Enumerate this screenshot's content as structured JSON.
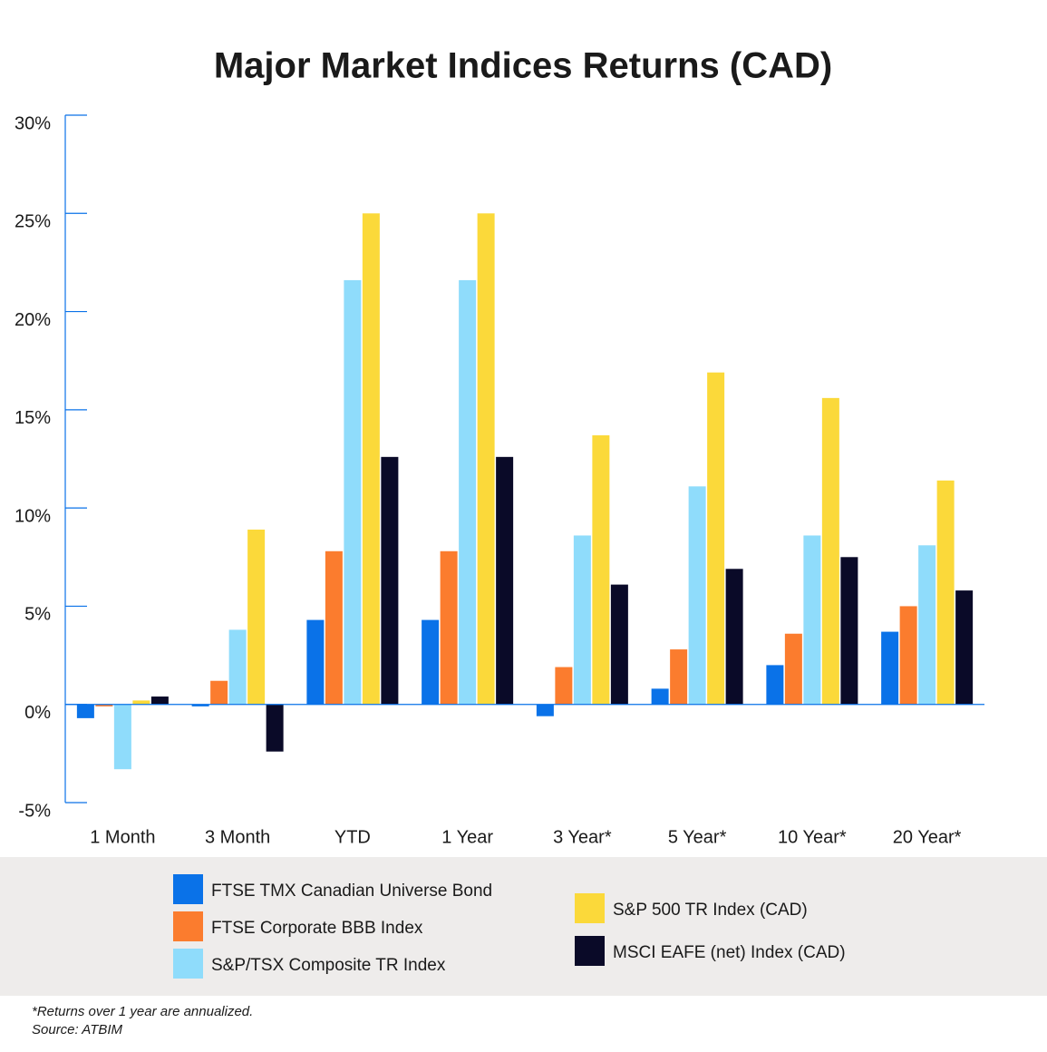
{
  "chart_data": {
    "type": "bar",
    "title": "Major Market Indices Returns (CAD)",
    "categories": [
      "1 Month",
      "3 Month",
      "YTD",
      "1 Year",
      "3 Year*",
      "5 Year*",
      "10 Year*",
      "20 Year*"
    ],
    "series": [
      {
        "name": "FTSE TMX Canadian Universe Bond",
        "color": "#0a72e8",
        "values": [
          -0.7,
          -0.1,
          4.3,
          4.3,
          -0.6,
          0.8,
          2.0,
          3.7
        ]
      },
      {
        "name": "FTSE Corporate BBB Index",
        "color": "#fb7c2e",
        "values": [
          -0.1,
          1.2,
          7.8,
          7.8,
          1.9,
          2.8,
          3.6,
          5.0
        ]
      },
      {
        "name": "S&P/TSX Composite TR Index",
        "color": "#8fdcfb",
        "values": [
          -3.3,
          3.8,
          21.6,
          21.6,
          8.6,
          11.1,
          8.6,
          8.1
        ]
      },
      {
        "name": "S&P 500 TR Index (CAD)",
        "color": "#fbd93a",
        "values": [
          0.2,
          8.9,
          25.0,
          25.0,
          13.7,
          16.9,
          15.6,
          11.4
        ]
      },
      {
        "name": "MSCI EAFE (net) Index (CAD)",
        "color": "#0a0a28",
        "values": [
          0.4,
          -2.4,
          12.6,
          12.6,
          6.1,
          6.9,
          7.5,
          5.8
        ]
      }
    ],
    "ylim": [
      -5,
      30
    ],
    "yticks": [
      {
        "value": -5,
        "label": "-5%"
      },
      {
        "value": 0,
        "label": "0%"
      },
      {
        "value": 5,
        "label": "5%"
      },
      {
        "value": 10,
        "label": "10%"
      },
      {
        "value": 15,
        "label": "15%"
      },
      {
        "value": 20,
        "label": "20%"
      },
      {
        "value": 25,
        "label": "25%"
      },
      {
        "value": 30,
        "label": "30%"
      }
    ],
    "notes": [
      "*Returns over 1 year are annualized.",
      "Source: ATBIM"
    ]
  }
}
